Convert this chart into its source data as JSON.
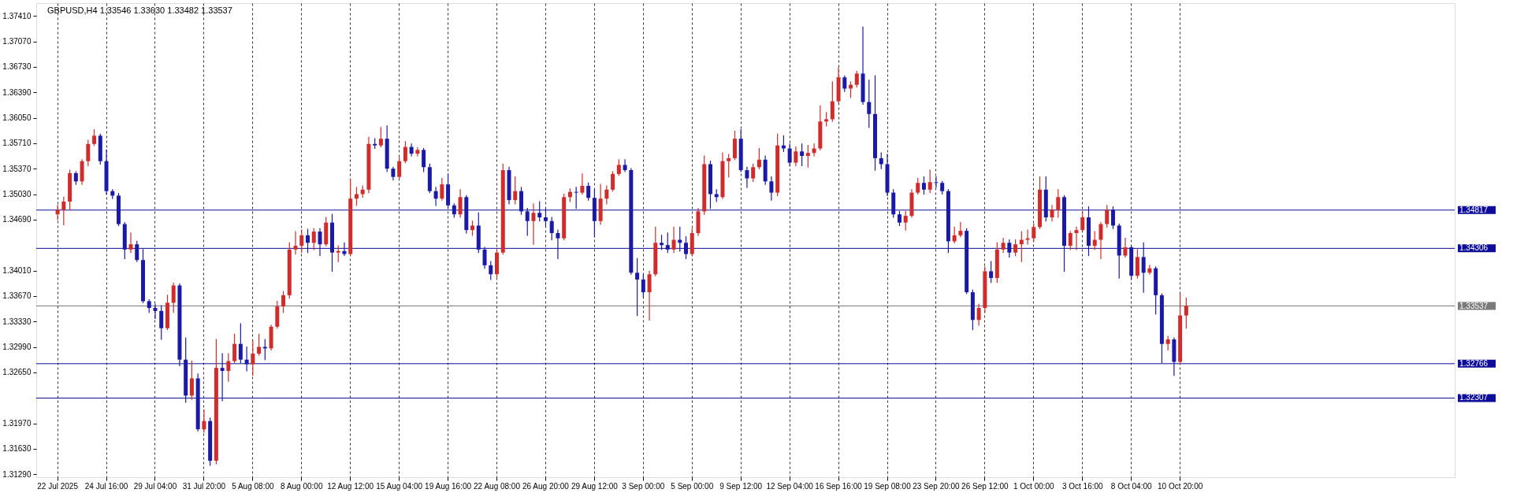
{
  "chart_data": {
    "type": "candlestick",
    "title": "GBPUSD,H4 1.33546 1.33630 1.33482 1.33537",
    "categories": [
      "22 Jul 2025",
      null,
      null,
      null,
      null,
      null,
      null,
      null,
      "24 Jul 16:00",
      null,
      null,
      null,
      null,
      null,
      null,
      null,
      "29 Jul 04:00",
      null,
      null,
      null,
      null,
      null,
      null,
      null,
      "31 Jul 20:00",
      null,
      null,
      null,
      null,
      null,
      null,
      null,
      "5 Aug 08:00",
      null,
      null,
      null,
      null,
      null,
      null,
      null,
      "8 Aug 00:00",
      null,
      null,
      null,
      null,
      null,
      null,
      null,
      "12 Aug 12:00",
      null,
      null,
      null,
      null,
      null,
      null,
      null,
      "15 Aug 04:00",
      null,
      null,
      null,
      null,
      null,
      null,
      null,
      "19 Aug 16:00",
      null,
      null,
      null,
      null,
      null,
      null,
      null,
      "22 Aug 08:00",
      null,
      null,
      null,
      null,
      null,
      null,
      null,
      "26 Aug 20:00",
      null,
      null,
      null,
      null,
      null,
      null,
      null,
      "29 Aug 12:00",
      null,
      null,
      null,
      null,
      null,
      null,
      null,
      "3 Sep 00:00",
      null,
      null,
      null,
      null,
      null,
      null,
      null,
      "5 Sep 00:00",
      null,
      null,
      null,
      null,
      null,
      null,
      null,
      "9 Sep 12:00",
      null,
      null,
      null,
      null,
      null,
      null,
      null,
      "12 Sep 04:00",
      null,
      null,
      null,
      null,
      null,
      null,
      null,
      "16 Sep 16:00",
      null,
      null,
      null,
      null,
      null,
      null,
      null,
      "19 Sep 08:00",
      null,
      null,
      null,
      null,
      null,
      null,
      null,
      "23 Sep 20:00",
      null,
      null,
      null,
      null,
      null,
      null,
      null,
      "26 Sep 12:00",
      null,
      null,
      null,
      null,
      null,
      null,
      null,
      "1 Oct 00:00",
      null,
      null,
      null,
      null,
      null,
      null,
      null,
      "3 Oct 16:00",
      null,
      null,
      null,
      null,
      null,
      null,
      null,
      "8 Oct 04:00",
      null,
      null,
      null,
      null,
      null,
      null,
      null,
      "10 Oct 20:00",
      null
    ],
    "ohlc": [
      [
        1.3476,
        1.3488,
        1.3469,
        1.3482
      ],
      [
        1.3482,
        1.3499,
        1.3462,
        1.3493
      ],
      [
        1.3493,
        1.3535,
        1.3482,
        1.3531
      ],
      [
        1.3531,
        1.3533,
        1.3516,
        1.352
      ],
      [
        1.352,
        1.3549,
        1.3516,
        1.3547
      ],
      [
        1.3547,
        1.3575,
        1.3541,
        1.357
      ],
      [
        1.357,
        1.3589,
        1.3568,
        1.3581
      ],
      [
        1.3581,
        1.3583,
        1.3543,
        1.3547
      ],
      [
        1.3547,
        1.3562,
        1.3503,
        1.3507
      ],
      [
        1.3507,
        1.3509,
        1.3497,
        1.3501
      ],
      [
        1.3501,
        1.3504,
        1.3461,
        1.3463
      ],
      [
        1.3463,
        1.3465,
        1.3417,
        1.3429
      ],
      [
        1.3429,
        1.3451,
        1.3425,
        1.3436
      ],
      [
        1.3436,
        1.344,
        1.3413,
        1.3415
      ],
      [
        1.3415,
        1.3429,
        1.3358,
        1.336
      ],
      [
        1.336,
        1.3362,
        1.3345,
        1.3351
      ],
      [
        1.3351,
        1.3356,
        1.3337,
        1.3347
      ],
      [
        1.3347,
        1.3354,
        1.3309,
        1.3324
      ],
      [
        1.3324,
        1.3368,
        1.3322,
        1.3358
      ],
      [
        1.3358,
        1.3384,
        1.3345,
        1.3381
      ],
      [
        1.3381,
        1.3383,
        1.3274,
        1.3282
      ],
      [
        1.3282,
        1.3311,
        1.3225,
        1.3234
      ],
      [
        1.3234,
        1.328,
        1.3229,
        1.3257
      ],
      [
        1.3257,
        1.3263,
        1.3187,
        1.3189
      ],
      [
        1.3189,
        1.3215,
        1.3185,
        1.32
      ],
      [
        1.32,
        1.3204,
        1.3141,
        1.3147
      ],
      [
        1.3147,
        1.3309,
        1.3143,
        1.3271
      ],
      [
        1.3271,
        1.329,
        1.3227,
        1.3267
      ],
      [
        1.3267,
        1.329,
        1.3253,
        1.328
      ],
      [
        1.328,
        1.3316,
        1.3278,
        1.3303
      ],
      [
        1.3303,
        1.333,
        1.3278,
        1.3282
      ],
      [
        1.3282,
        1.3299,
        1.3267,
        1.3276
      ],
      [
        1.3276,
        1.3307,
        1.3261,
        1.329
      ],
      [
        1.329,
        1.3316,
        1.3288,
        1.3299
      ],
      [
        1.3299,
        1.3309,
        1.3282,
        1.3297
      ],
      [
        1.3297,
        1.3328,
        1.3295,
        1.3326
      ],
      [
        1.3326,
        1.336,
        1.3324,
        1.3353
      ],
      [
        1.3353,
        1.3373,
        1.3345,
        1.3368
      ],
      [
        1.3368,
        1.3438,
        1.3364,
        1.3429
      ],
      [
        1.3429,
        1.3453,
        1.3423,
        1.3434
      ],
      [
        1.3434,
        1.3455,
        1.3425,
        1.3448
      ],
      [
        1.3448,
        1.3456,
        1.3425,
        1.3438
      ],
      [
        1.3438,
        1.3457,
        1.3429,
        1.3453
      ],
      [
        1.3453,
        1.3457,
        1.3421,
        1.3436
      ],
      [
        1.3436,
        1.3472,
        1.3434,
        1.3465
      ],
      [
        1.3465,
        1.3476,
        1.34,
        1.3425
      ],
      [
        1.3425,
        1.3434,
        1.3413,
        1.3427
      ],
      [
        1.3427,
        1.3438,
        1.3421,
        1.3423
      ],
      [
        1.3423,
        1.3522,
        1.3421,
        1.3497
      ],
      [
        1.3497,
        1.3512,
        1.3488,
        1.3503
      ],
      [
        1.3503,
        1.3514,
        1.3499,
        1.3509
      ],
      [
        1.3509,
        1.3579,
        1.3505,
        1.357
      ],
      [
        1.357,
        1.3577,
        1.3564,
        1.3568
      ],
      [
        1.3568,
        1.3592,
        1.3566,
        1.3577
      ],
      [
        1.3577,
        1.3594,
        1.3533,
        1.3537
      ],
      [
        1.3537,
        1.3539,
        1.3522,
        1.3526
      ],
      [
        1.3526,
        1.3552,
        1.3524,
        1.3547
      ],
      [
        1.3547,
        1.3573,
        1.3545,
        1.3566
      ],
      [
        1.3566,
        1.357,
        1.3554,
        1.3557
      ],
      [
        1.3557,
        1.3565,
        1.3554,
        1.3562
      ],
      [
        1.3562,
        1.3564,
        1.3533,
        1.3539
      ],
      [
        1.3539,
        1.3543,
        1.3505,
        1.3507
      ],
      [
        1.3507,
        1.3512,
        1.3488,
        1.3497
      ],
      [
        1.3497,
        1.3524,
        1.3495,
        1.3516
      ],
      [
        1.3516,
        1.353,
        1.3484,
        1.3488
      ],
      [
        1.3488,
        1.349,
        1.3472,
        1.3476
      ],
      [
        1.3476,
        1.3509,
        1.3472,
        1.3499
      ],
      [
        1.3499,
        1.3501,
        1.3451,
        1.3455
      ],
      [
        1.3455,
        1.3467,
        1.3448,
        1.3461
      ],
      [
        1.3461,
        1.3478,
        1.3425,
        1.3429
      ],
      [
        1.3429,
        1.3432,
        1.3404,
        1.3408
      ],
      [
        1.3408,
        1.3413,
        1.3389,
        1.3396
      ],
      [
        1.3396,
        1.3429,
        1.3391,
        1.3425
      ],
      [
        1.3425,
        1.3543,
        1.3423,
        1.3535
      ],
      [
        1.3535,
        1.3539,
        1.349,
        1.3495
      ],
      [
        1.3495,
        1.3526,
        1.349,
        1.3507
      ],
      [
        1.3507,
        1.3512,
        1.3476,
        1.348
      ],
      [
        1.348,
        1.3484,
        1.3448,
        1.3467
      ],
      [
        1.3467,
        1.349,
        1.3436,
        1.3478
      ],
      [
        1.3478,
        1.3493,
        1.3467,
        1.3472
      ],
      [
        1.3472,
        1.3484,
        1.3461,
        1.3467
      ],
      [
        1.3467,
        1.3472,
        1.3442,
        1.3451
      ],
      [
        1.3451,
        1.3455,
        1.3417,
        1.3444
      ],
      [
        1.3444,
        1.3503,
        1.3442,
        1.3499
      ],
      [
        1.3499,
        1.351,
        1.3493,
        1.3506
      ],
      [
        1.3506,
        1.3512,
        1.3484,
        1.3505
      ],
      [
        1.3505,
        1.353,
        1.3503,
        1.3514
      ],
      [
        1.3514,
        1.3518,
        1.3495,
        1.3498
      ],
      [
        1.3498,
        1.3509,
        1.3446,
        1.3467
      ],
      [
        1.3467,
        1.3516,
        1.3463,
        1.3497
      ],
      [
        1.3497,
        1.3514,
        1.349,
        1.3509
      ],
      [
        1.3509,
        1.3533,
        1.3507,
        1.353
      ],
      [
        1.353,
        1.3549,
        1.3528,
        1.3542
      ],
      [
        1.3542,
        1.3549,
        1.3533,
        1.3535
      ],
      [
        1.3535,
        1.3537,
        1.3396,
        1.3398
      ],
      [
        1.3398,
        1.3417,
        1.3341,
        1.3389
      ],
      [
        1.3389,
        1.3396,
        1.3366,
        1.3372
      ],
      [
        1.3372,
        1.34,
        1.3335,
        1.3396
      ],
      [
        1.3396,
        1.3459,
        1.3394,
        1.3438
      ],
      [
        1.3438,
        1.3448,
        1.3429,
        1.3435
      ],
      [
        1.3435,
        1.3451,
        1.3425,
        1.3429
      ],
      [
        1.3429,
        1.3459,
        1.3425,
        1.3442
      ],
      [
        1.3442,
        1.3459,
        1.3427,
        1.3438
      ],
      [
        1.3438,
        1.3446,
        1.3417,
        1.3423
      ],
      [
        1.3423,
        1.3457,
        1.3421,
        1.3451
      ],
      [
        1.3451,
        1.3484,
        1.3448,
        1.348
      ],
      [
        1.348,
        1.3554,
        1.3476,
        1.3543
      ],
      [
        1.3543,
        1.3547,
        1.3484,
        1.3503
      ],
      [
        1.3503,
        1.3509,
        1.3493,
        1.3499
      ],
      [
        1.3499,
        1.3558,
        1.3497,
        1.3547
      ],
      [
        1.3547,
        1.3556,
        1.3526,
        1.3551
      ],
      [
        1.3551,
        1.3587,
        1.3549,
        1.3577
      ],
      [
        1.3577,
        1.3589,
        1.3533,
        1.3535
      ],
      [
        1.3535,
        1.3539,
        1.3512,
        1.3524
      ],
      [
        1.3524,
        1.3543,
        1.352,
        1.3539
      ],
      [
        1.3539,
        1.3564,
        1.3537,
        1.3549
      ],
      [
        1.3549,
        1.3554,
        1.3516,
        1.352
      ],
      [
        1.352,
        1.3526,
        1.3495,
        1.3505
      ],
      [
        1.3505,
        1.3583,
        1.3501,
        1.3568
      ],
      [
        1.3568,
        1.3581,
        1.356,
        1.3564
      ],
      [
        1.3564,
        1.357,
        1.3541,
        1.3545
      ],
      [
        1.3545,
        1.3566,
        1.3541,
        1.356
      ],
      [
        1.356,
        1.357,
        1.3541,
        1.3554
      ],
      [
        1.3554,
        1.3568,
        1.3539,
        1.3558
      ],
      [
        1.3558,
        1.357,
        1.3554,
        1.3564
      ],
      [
        1.3564,
        1.3621,
        1.3562,
        1.36
      ],
      [
        1.36,
        1.3612,
        1.3594,
        1.3603
      ],
      [
        1.3603,
        1.3653,
        1.36,
        1.3627
      ],
      [
        1.3627,
        1.3672,
        1.3625,
        1.3659
      ],
      [
        1.3659,
        1.3661,
        1.364,
        1.3644
      ],
      [
        1.3644,
        1.3653,
        1.3632,
        1.3649
      ],
      [
        1.3649,
        1.3667,
        1.3646,
        1.3664
      ],
      [
        1.3664,
        1.3726,
        1.3623,
        1.3626
      ],
      [
        1.3626,
        1.3655,
        1.3592,
        1.361
      ],
      [
        1.361,
        1.3661,
        1.3535,
        1.3551
      ],
      [
        1.3551,
        1.3558,
        1.3537,
        1.3543
      ],
      [
        1.3543,
        1.3556,
        1.3501,
        1.3505
      ],
      [
        1.3505,
        1.3509,
        1.3472,
        1.3476
      ],
      [
        1.3476,
        1.348,
        1.3461,
        1.3465
      ],
      [
        1.3465,
        1.348,
        1.3455,
        1.3474
      ],
      [
        1.3474,
        1.3509,
        1.3472,
        1.3505
      ],
      [
        1.3505,
        1.3524,
        1.3503,
        1.3518
      ],
      [
        1.3518,
        1.3526,
        1.3503,
        1.3509
      ],
      [
        1.3509,
        1.3535,
        1.3505,
        1.3519
      ],
      [
        1.3519,
        1.3526,
        1.3512,
        1.3518
      ],
      [
        1.3518,
        1.352,
        1.3503,
        1.3507
      ],
      [
        1.3507,
        1.3509,
        1.3425,
        1.344
      ],
      [
        1.344,
        1.3459,
        1.3438,
        1.3448
      ],
      [
        1.3448,
        1.3465,
        1.3446,
        1.3454
      ],
      [
        1.3454,
        1.3457,
        1.337,
        1.3372
      ],
      [
        1.3372,
        1.3375,
        1.3322,
        1.3335
      ],
      [
        1.3335,
        1.3356,
        1.3328,
        1.3351
      ],
      [
        1.3351,
        1.3406,
        1.3345,
        1.34
      ],
      [
        1.34,
        1.3413,
        1.3385,
        1.3391
      ],
      [
        1.3391,
        1.3438,
        1.3385,
        1.3429
      ],
      [
        1.3429,
        1.3444,
        1.3425,
        1.3438
      ],
      [
        1.3438,
        1.3442,
        1.3419,
        1.3425
      ],
      [
        1.3425,
        1.3442,
        1.3421,
        1.3436
      ],
      [
        1.3436,
        1.3453,
        1.3413,
        1.3442
      ],
      [
        1.3442,
        1.3455,
        1.3436,
        1.3444
      ],
      [
        1.3444,
        1.3463,
        1.344,
        1.3459
      ],
      [
        1.3459,
        1.3526,
        1.3457,
        1.3509
      ],
      [
        1.3509,
        1.3526,
        1.3467,
        1.3472
      ],
      [
        1.3472,
        1.3488,
        1.3467,
        1.3482
      ],
      [
        1.3482,
        1.3509,
        1.3472,
        1.3499
      ],
      [
        1.3499,
        1.3501,
        1.34,
        1.3434
      ],
      [
        1.3434,
        1.3453,
        1.3429,
        1.3451
      ],
      [
        1.3451,
        1.3459,
        1.3429,
        1.3455
      ],
      [
        1.3455,
        1.348,
        1.3453,
        1.3472
      ],
      [
        1.3472,
        1.3486,
        1.3421,
        1.3434
      ],
      [
        1.3434,
        1.3453,
        1.3429,
        1.3442
      ],
      [
        1.3442,
        1.3465,
        1.3417,
        1.3463
      ],
      [
        1.3463,
        1.3488,
        1.3459,
        1.3482
      ],
      [
        1.3482,
        1.3486,
        1.3457,
        1.3461
      ],
      [
        1.3461,
        1.3463,
        1.3391,
        1.3421
      ],
      [
        1.3421,
        1.3444,
        1.3419,
        1.3432
      ],
      [
        1.3432,
        1.3434,
        1.3389,
        1.3394
      ],
      [
        1.3394,
        1.3429,
        1.3391,
        1.3419
      ],
      [
        1.3419,
        1.3438,
        1.3372,
        1.3398
      ],
      [
        1.3398,
        1.3408,
        1.3396,
        1.3404
      ],
      [
        1.3404,
        1.3406,
        1.3343,
        1.3368
      ],
      [
        1.3368,
        1.337,
        1.3278,
        1.3303
      ],
      [
        1.3303,
        1.3313,
        1.3295,
        1.3309
      ],
      [
        1.3309,
        1.3311,
        1.3261,
        1.3279
      ],
      [
        1.3279,
        1.337,
        1.3276,
        1.3341
      ],
      [
        1.3341,
        1.3364,
        1.3324,
        1.3354
      ]
    ],
    "colors": [
      "#d02c2c",
      "#d02c2c",
      "#d02c2c",
      "#1a1aa6",
      "#d02c2c",
      "#d02c2c",
      "#d02c2c",
      "#1a1aa6",
      "#1a1aa6",
      "#1a1aa6",
      "#1a1aa6",
      "#1a1aa6",
      "#d02c2c",
      "#1a1aa6",
      "#1a1aa6",
      "#1a1aa6",
      "#1a1aa6",
      "#1a1aa6",
      "#d02c2c",
      "#d02c2c",
      "#1a1aa6",
      "#1a1aa6",
      "#d02c2c",
      "#1a1aa6",
      "#d02c2c",
      "#1a1aa6",
      "#d02c2c",
      "#1a1aa6",
      "#d02c2c",
      "#d02c2c",
      "#1a1aa6",
      "#1a1aa6",
      "#d02c2c",
      "#d02c2c",
      "#1a1aa6",
      "#d02c2c",
      "#d02c2c",
      "#d02c2c",
      "#d02c2c",
      "#d02c2c",
      "#d02c2c",
      "#1a1aa6",
      "#d02c2c",
      "#1a1aa6",
      "#d02c2c",
      "#1a1aa6",
      "#d02c2c",
      "#1a1aa6",
      "#d02c2c",
      "#d02c2c",
      "#d02c2c",
      "#d02c2c",
      "#1a1aa6",
      "#d02c2c",
      "#1a1aa6",
      "#1a1aa6",
      "#d02c2c",
      "#d02c2c",
      "#1a1aa6",
      "#d02c2c",
      "#1a1aa6",
      "#1a1aa6",
      "#1a1aa6",
      "#d02c2c",
      "#1a1aa6",
      "#1a1aa6",
      "#d02c2c",
      "#1a1aa6",
      "#d02c2c",
      "#1a1aa6",
      "#1a1aa6",
      "#1a1aa6",
      "#d02c2c",
      "#d02c2c",
      "#1a1aa6",
      "#d02c2c",
      "#1a1aa6",
      "#1a1aa6",
      "#d02c2c",
      "#1a1aa6",
      "#1a1aa6",
      "#1a1aa6",
      "#1a1aa6",
      "#d02c2c",
      "#d02c2c",
      "#1a1aa6",
      "#d02c2c",
      "#1a1aa6",
      "#1a1aa6",
      "#d02c2c",
      "#d02c2c",
      "#d02c2c",
      "#d02c2c",
      "#1a1aa6",
      "#1a1aa6",
      "#1a1aa6",
      "#1a1aa6",
      "#d02c2c",
      "#d02c2c",
      "#1a1aa6",
      "#1a1aa6",
      "#d02c2c",
      "#1a1aa6",
      "#1a1aa6",
      "#d02c2c",
      "#d02c2c",
      "#d02c2c",
      "#1a1aa6",
      "#1a1aa6",
      "#d02c2c",
      "#d02c2c",
      "#d02c2c",
      "#1a1aa6",
      "#1a1aa6",
      "#d02c2c",
      "#d02c2c",
      "#1a1aa6",
      "#1a1aa6",
      "#d02c2c",
      "#1a1aa6",
      "#1a1aa6",
      "#d02c2c",
      "#1a1aa6",
      "#d02c2c",
      "#d02c2c",
      "#d02c2c",
      "#d02c2c",
      "#d02c2c",
      "#d02c2c",
      "#1a1aa6",
      "#d02c2c",
      "#d02c2c",
      "#1a1aa6",
      "#1a1aa6",
      "#1a1aa6",
      "#1a1aa6",
      "#1a1aa6",
      "#1a1aa6",
      "#1a1aa6",
      "#d02c2c",
      "#d02c2c",
      "#d02c2c",
      "#1a1aa6",
      "#d02c2c",
      "#1a1aa6",
      "#1a1aa6",
      "#1a1aa6",
      "#d02c2c",
      "#d02c2c",
      "#1a1aa6",
      "#1a1aa6",
      "#d02c2c",
      "#d02c2c",
      "#1a1aa6",
      "#d02c2c",
      "#d02c2c",
      "#1a1aa6",
      "#d02c2c",
      "#d02c2c",
      "#d02c2c",
      "#d02c2c",
      "#d02c2c",
      "#1a1aa6",
      "#d02c2c",
      "#d02c2c",
      "#1a1aa6",
      "#d02c2c",
      "#d02c2c",
      "#d02c2c",
      "#1a1aa6",
      "#d02c2c",
      "#d02c2c",
      "#d02c2c",
      "#1a1aa6",
      "#1a1aa6",
      "#d02c2c",
      "#1a1aa6",
      "#d02c2c",
      "#1a1aa6",
      "#d02c2c",
      "#1a1aa6",
      "#1a1aa6",
      "#d02c2c",
      "#1a1aa6",
      "#d02c2c",
      "#d02c2c"
    ],
    "ylim": [
      1.3125,
      1.3758
    ],
    "yticks": [
      {
        "value": 1.3741,
        "label": "1.37410"
      },
      {
        "value": 1.3707,
        "label": "1.37070"
      },
      {
        "value": 1.3673,
        "label": "1.36730"
      },
      {
        "value": 1.3639,
        "label": "1.36390"
      },
      {
        "value": 1.3605,
        "label": "1.36050"
      },
      {
        "value": 1.3571,
        "label": "1.35710"
      },
      {
        "value": 1.3537,
        "label": "1.35370"
      },
      {
        "value": 1.3503,
        "label": "1.35030"
      },
      {
        "value": 1.3469,
        "label": "1.34690"
      },
      {
        "value": 1.3401,
        "label": "1.34010"
      },
      {
        "value": 1.3367,
        "label": "1.33670"
      },
      {
        "value": 1.3333,
        "label": "1.33330"
      },
      {
        "value": 1.3299,
        "label": "1.32990"
      },
      {
        "value": 1.3265,
        "label": "1.32650"
      },
      {
        "value": 1.3197,
        "label": "1.31970"
      },
      {
        "value": 1.3163,
        "label": "1.31630"
      },
      {
        "value": 1.3129,
        "label": "1.31290"
      }
    ],
    "grid": "x",
    "ref_lines": [
      {
        "axis": "y",
        "value": 1.34817,
        "label": "1.34817",
        "color": "#0d0d99"
      },
      {
        "axis": "y",
        "value": 1.34306,
        "label": "1.34306",
        "color": "#0d0d99"
      },
      {
        "axis": "y",
        "value": 1.33537,
        "label": "1.33537",
        "color": "#7a7a7a"
      },
      {
        "axis": "y",
        "value": 1.32766,
        "label": "1.32766",
        "color": "#0d0d99"
      },
      {
        "axis": "y",
        "value": 1.32307,
        "label": "1.32307",
        "color": "#0d0d99"
      }
    ]
  }
}
